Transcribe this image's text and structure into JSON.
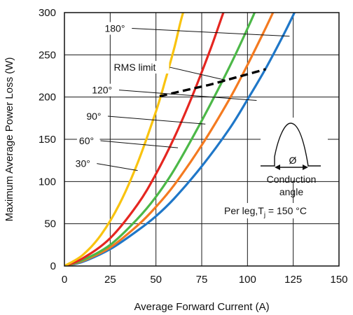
{
  "chart_data": {
    "type": "line",
    "xlabel": "Average Forward Current (A)",
    "ylabel": "Maximum Average Power Loss (W)",
    "xlim": [
      0,
      150
    ],
    "ylim": [
      0,
      300
    ],
    "xticks": [
      0,
      25,
      50,
      75,
      100,
      125,
      150
    ],
    "yticks": [
      0,
      50,
      100,
      150,
      200,
      250,
      300
    ],
    "grid": true,
    "series": [
      {
        "name": "180°",
        "color": "#1f77c8",
        "x": [
          0,
          10,
          25,
          40,
          50,
          60,
          75,
          90,
          100,
          110,
          120,
          125,
          130
        ],
        "y": [
          0,
          5,
          20,
          42,
          59,
          80,
          118,
          162,
          197,
          234,
          275,
          297,
          320
        ]
      },
      {
        "name": "120°",
        "color": "#f47a20",
        "x": [
          0,
          10,
          25,
          40,
          50,
          60,
          75,
          90,
          100,
          110,
          115,
          118
        ],
        "y": [
          0,
          6,
          22,
          48,
          70,
          96,
          143,
          197,
          238,
          282,
          305,
          320
        ]
      },
      {
        "name": "90°",
        "color": "#4cb848",
        "x": [
          0,
          10,
          25,
          40,
          50,
          60,
          75,
          90,
          100,
          105,
          107
        ],
        "y": [
          0,
          7,
          25,
          56,
          82,
          114,
          172,
          235,
          281,
          306,
          320
        ]
      },
      {
        "name": "60°",
        "color": "#e52620",
        "x": [
          0,
          10,
          25,
          40,
          50,
          60,
          70,
          80,
          88,
          91
        ],
        "y": [
          0,
          9,
          33,
          73,
          109,
          152,
          202,
          258,
          307,
          320
        ]
      },
      {
        "name": "30°",
        "color": "#f9c30f",
        "x": [
          0,
          10,
          20,
          30,
          40,
          50,
          55,
          60,
          65,
          70
        ],
        "y": [
          0,
          13,
          37,
          73,
          122,
          183,
          219,
          258,
          301,
          320
        ]
      }
    ],
    "rms_limit": {
      "name": "RMS limit",
      "color": "#000000",
      "x": [
        52,
        60,
        70,
        80,
        90,
        100,
        110
      ],
      "y": [
        201,
        205,
        210,
        215,
        221,
        227,
        233
      ]
    },
    "annotations": [
      {
        "label": "180°",
        "x": 22,
        "y": 278,
        "target_x": 123,
        "target_y": 272
      },
      {
        "label": "RMS limit",
        "x": 27,
        "y": 232,
        "target_x": 88,
        "target_y": 220
      },
      {
        "label": "120°",
        "x": 15,
        "y": 205,
        "target_x": 105,
        "target_y": 196
      },
      {
        "label": "90°",
        "x": 12,
        "y": 174,
        "target_x": 77,
        "target_y": 168
      },
      {
        "label": "60°",
        "x": 8,
        "y": 145,
        "target_x": 62,
        "target_y": 140
      },
      {
        "label": "30°",
        "x": 6,
        "y": 118,
        "target_x": 40,
        "target_y": 113
      }
    ],
    "inset": {
      "symbol": "Ø",
      "caption_line1": "Conduction",
      "caption_line2": "angle",
      "note_prefix": "Per leg,T",
      "note_sub": "j",
      "note_suffix": " = 150 °C"
    }
  }
}
